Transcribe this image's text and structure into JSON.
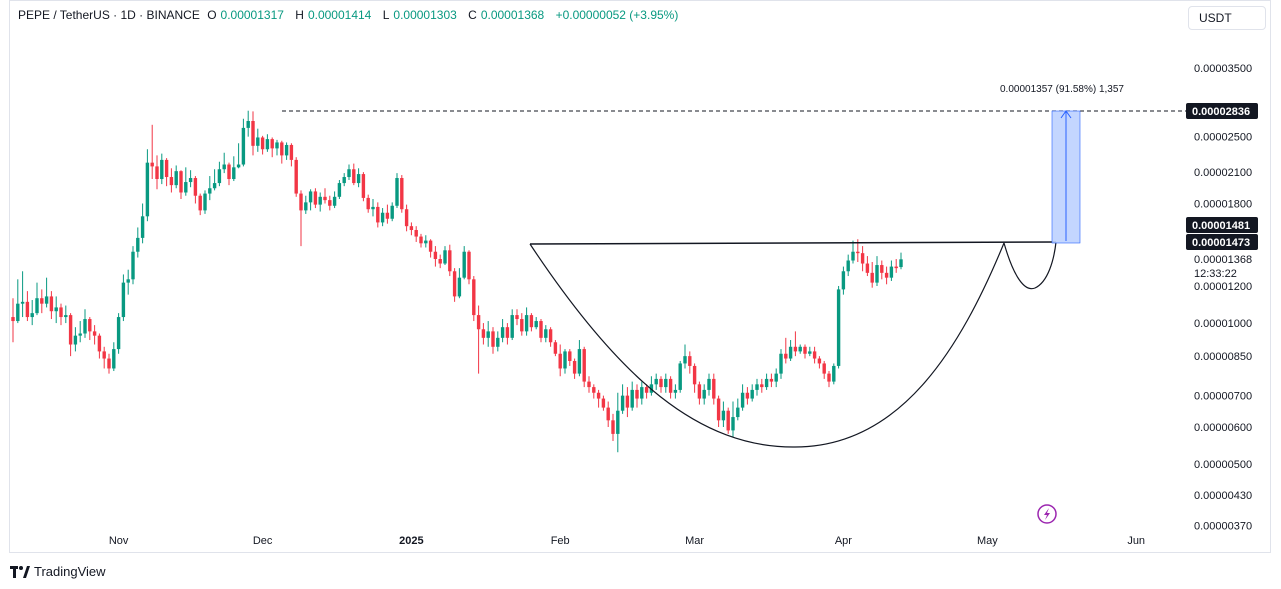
{
  "header": {
    "symbol": "PEPE / TetherUS · 1D · BINANCE",
    "o_label": "O",
    "o_value": "0.00001317",
    "h_label": "H",
    "h_value": "0.00001414",
    "l_label": "L",
    "l_value": "0.00001303",
    "c_label": "C",
    "c_value": "0.00001368",
    "change": "+0.00000052 (+3.95%)"
  },
  "currency_button": "USDT",
  "logo_text": "TradingView",
  "colors": {
    "up": "#089981",
    "down": "#f23645",
    "measure_fill": "#bcd2ff",
    "measure_line": "#2962ff"
  },
  "chart_data": {
    "type": "candlestick",
    "symbol": "PEPE / TetherUS",
    "interval": "1D",
    "exchange": "BINANCE",
    "x_labels": [
      "Nov",
      "Dec",
      "2025",
      "Feb",
      "Mar",
      "Apr",
      "May",
      "Jun"
    ],
    "y_ticks": [
      "0.00003500",
      "0.00002500",
      "0.00002100",
      "0.00001800",
      "0.00001200",
      "0.00001000",
      "0.00000850",
      "0.00000700",
      "0.00000600",
      "0.00000500",
      "0.00000430",
      "0.00000370"
    ],
    "y_scale": "log",
    "price_tags": {
      "target": "0.00002836",
      "high_line": "0.00001481",
      "neckline": "0.00001473"
    },
    "last_price": "0.00001368",
    "countdown": "12:33:22",
    "measure_label": "0.00001357 (91.58%) 1,357",
    "start_date": "2024-10-10",
    "candles": [
      [
        10.3,
        10.1,
        11.3,
        9.1
      ],
      [
        10.1,
        11.0,
        12.4,
        10.0
      ],
      [
        11.0,
        11.1,
        12.9,
        10.3
      ],
      [
        11.1,
        10.3,
        11.7,
        10.1
      ],
      [
        10.3,
        10.5,
        11.2,
        9.9
      ],
      [
        10.5,
        11.3,
        12.2,
        10.4
      ],
      [
        11.3,
        11.0,
        11.8,
        10.5
      ],
      [
        11.0,
        11.4,
        12.5,
        10.8
      ],
      [
        11.4,
        10.6,
        11.7,
        10.2
      ],
      [
        10.6,
        10.8,
        11.4,
        10.0
      ],
      [
        10.8,
        10.3,
        11.0,
        9.9
      ],
      [
        10.3,
        10.4,
        10.9,
        10.0
      ],
      [
        10.4,
        9.0,
        10.5,
        8.5
      ],
      [
        9.0,
        9.4,
        9.8,
        8.7
      ],
      [
        9.4,
        9.5,
        10.1,
        9.1
      ],
      [
        9.5,
        10.2,
        10.7,
        9.3
      ],
      [
        10.2,
        9.6,
        10.3,
        9.2
      ],
      [
        9.6,
        9.4,
        9.9,
        9.0
      ],
      [
        9.4,
        8.7,
        9.5,
        8.4
      ],
      [
        8.7,
        8.4,
        8.9,
        8.0
      ],
      [
        8.4,
        8.0,
        8.6,
        7.8
      ],
      [
        8.0,
        8.8,
        9.1,
        7.9
      ],
      [
        8.8,
        10.3,
        10.5,
        8.6
      ],
      [
        10.3,
        12.2,
        12.7,
        10.1
      ],
      [
        12.2,
        12.4,
        13.0,
        11.5
      ],
      [
        12.4,
        14.2,
        14.6,
        12.1
      ],
      [
        14.2,
        15.2,
        16.0,
        13.8
      ],
      [
        15.2,
        16.9,
        18.0,
        14.8
      ],
      [
        16.9,
        22.0,
        23.5,
        16.5
      ],
      [
        22.0,
        21.6,
        26.5,
        20.3
      ],
      [
        21.6,
        20.3,
        22.8,
        19.3
      ],
      [
        20.3,
        22.3,
        23.0,
        19.8
      ],
      [
        22.3,
        20.5,
        22.5,
        19.6
      ],
      [
        20.5,
        19.7,
        21.4,
        19.0
      ],
      [
        19.7,
        21.1,
        21.7,
        19.4
      ],
      [
        21.1,
        19.0,
        21.2,
        18.4
      ],
      [
        19.0,
        20.0,
        21.5,
        18.7
      ],
      [
        20.0,
        20.4,
        21.2,
        19.5
      ],
      [
        20.4,
        18.7,
        20.6,
        18.0
      ],
      [
        18.7,
        17.4,
        18.9,
        17.0
      ],
      [
        17.4,
        18.9,
        19.2,
        17.1
      ],
      [
        18.9,
        19.4,
        20.6,
        18.3
      ],
      [
        19.4,
        19.9,
        21.3,
        19.2
      ],
      [
        19.9,
        21.3,
        22.1,
        19.6
      ],
      [
        21.3,
        21.8,
        23.1,
        20.9
      ],
      [
        21.8,
        20.3,
        22.0,
        19.7
      ],
      [
        20.3,
        21.5,
        22.7,
        20.1
      ],
      [
        21.5,
        21.8,
        24.2,
        21.4
      ],
      [
        21.8,
        26.1,
        27.3,
        21.6
      ],
      [
        26.1,
        27.0,
        28.4,
        25.0
      ],
      [
        27.0,
        23.9,
        28.3,
        22.8
      ],
      [
        23.9,
        24.9,
        26.0,
        23.2
      ],
      [
        24.9,
        23.5,
        25.1,
        22.9
      ],
      [
        23.5,
        24.7,
        25.3,
        23.2
      ],
      [
        24.7,
        23.6,
        24.9,
        22.6
      ],
      [
        23.6,
        24.3,
        24.6,
        22.8
      ],
      [
        24.3,
        22.8,
        24.5,
        21.9
      ],
      [
        22.8,
        24.0,
        24.3,
        22.3
      ],
      [
        24.0,
        22.3,
        24.2,
        21.6
      ],
      [
        22.3,
        18.9,
        22.6,
        18.6
      ],
      [
        18.9,
        17.4,
        19.2,
        14.6
      ],
      [
        17.4,
        18.1,
        18.7,
        17.1
      ],
      [
        18.1,
        19.1,
        19.3,
        17.4
      ],
      [
        19.1,
        17.9,
        19.4,
        17.6
      ],
      [
        17.9,
        18.6,
        19.0,
        17.3
      ],
      [
        18.6,
        18.3,
        19.4,
        18.0
      ],
      [
        18.3,
        17.8,
        18.7,
        17.4
      ],
      [
        17.8,
        18.6,
        19.1,
        17.6
      ],
      [
        18.6,
        19.9,
        20.2,
        18.4
      ],
      [
        19.9,
        20.5,
        20.9,
        19.6
      ],
      [
        20.5,
        21.3,
        21.8,
        20.2
      ],
      [
        21.3,
        19.9,
        21.9,
        19.7
      ],
      [
        19.9,
        20.8,
        21.4,
        19.5
      ],
      [
        20.8,
        18.5,
        21.0,
        18.2
      ],
      [
        18.5,
        17.5,
        18.8,
        17.2
      ],
      [
        17.5,
        17.7,
        18.4,
        16.9
      ],
      [
        17.7,
        16.4,
        18.1,
        16.0
      ],
      [
        16.4,
        17.2,
        17.6,
        16.1
      ],
      [
        17.2,
        16.7,
        17.9,
        16.3
      ],
      [
        16.7,
        17.8,
        18.1,
        16.5
      ],
      [
        17.8,
        20.4,
        20.9,
        17.6
      ],
      [
        20.4,
        17.5,
        20.7,
        17.2
      ],
      [
        17.5,
        16.1,
        17.9,
        15.7
      ],
      [
        16.1,
        15.8,
        16.4,
        15.4
      ],
      [
        15.8,
        15.3,
        16.1,
        14.9
      ],
      [
        15.3,
        14.8,
        15.5,
        14.5
      ],
      [
        14.8,
        15.0,
        15.4,
        14.5
      ],
      [
        15.0,
        14.2,
        15.1,
        13.8
      ],
      [
        14.2,
        13.7,
        14.6,
        13.2
      ],
      [
        13.7,
        13.4,
        14.0,
        13.1
      ],
      [
        13.4,
        14.3,
        14.6,
        13.3
      ],
      [
        14.3,
        12.9,
        14.7,
        12.6
      ],
      [
        12.9,
        11.4,
        13.1,
        11.1
      ],
      [
        11.4,
        12.5,
        13.1,
        11.3
      ],
      [
        12.5,
        14.2,
        14.6,
        12.4
      ],
      [
        14.2,
        12.4,
        14.3,
        12.1
      ],
      [
        12.4,
        10.4,
        12.6,
        10.1
      ],
      [
        10.4,
        9.7,
        10.9,
        7.8
      ],
      [
        9.7,
        9.3,
        10.0,
        9.0
      ],
      [
        9.3,
        9.6,
        10.1,
        8.9
      ],
      [
        9.6,
        8.9,
        9.8,
        8.6
      ],
      [
        8.9,
        9.3,
        9.6,
        8.7
      ],
      [
        9.3,
        9.8,
        10.2,
        9.1
      ],
      [
        9.8,
        9.3,
        10.0,
        9.0
      ],
      [
        9.3,
        10.4,
        10.7,
        9.2
      ],
      [
        10.4,
        10.2,
        10.7,
        9.9
      ],
      [
        10.2,
        9.6,
        10.5,
        9.4
      ],
      [
        9.6,
        10.4,
        10.8,
        9.4
      ],
      [
        10.4,
        9.8,
        10.5,
        9.6
      ],
      [
        9.8,
        10.1,
        10.3,
        9.7
      ],
      [
        10.1,
        9.3,
        10.2,
        9.1
      ],
      [
        9.3,
        9.7,
        9.9,
        9.1
      ],
      [
        9.7,
        9.1,
        9.8,
        8.9
      ],
      [
        9.1,
        8.6,
        9.2,
        8.5
      ],
      [
        8.6,
        8.0,
        9.0,
        7.7
      ],
      [
        8.0,
        8.7,
        8.8,
        7.8
      ],
      [
        8.7,
        8.3,
        8.8,
        8.1
      ],
      [
        8.3,
        7.8,
        8.4,
        7.6
      ],
      [
        7.8,
        8.8,
        9.2,
        7.7
      ],
      [
        8.8,
        7.5,
        8.9,
        7.3
      ],
      [
        7.5,
        7.3,
        7.7,
        7.1
      ],
      [
        7.3,
        7.1,
        7.4,
        6.9
      ],
      [
        7.1,
        6.9,
        7.2,
        6.6
      ],
      [
        6.9,
        6.6,
        7.0,
        6.5
      ],
      [
        6.6,
        6.2,
        6.8,
        6.0
      ],
      [
        6.2,
        5.8,
        6.4,
        5.6
      ],
      [
        5.8,
        6.5,
        7.1,
        5.3
      ],
      [
        6.5,
        7.0,
        7.4,
        6.4
      ],
      [
        7.0,
        6.6,
        7.3,
        6.3
      ],
      [
        6.6,
        7.2,
        7.5,
        6.5
      ],
      [
        7.2,
        6.9,
        7.4,
        6.6
      ],
      [
        6.9,
        7.3,
        7.5,
        6.7
      ],
      [
        7.3,
        7.1,
        7.4,
        6.9
      ],
      [
        7.1,
        7.4,
        7.7,
        7.0
      ],
      [
        7.4,
        7.6,
        7.8,
        7.2
      ],
      [
        7.6,
        7.3,
        7.7,
        7.1
      ],
      [
        7.3,
        7.6,
        7.8,
        7.1
      ],
      [
        7.6,
        7.1,
        7.7,
        6.9
      ],
      [
        7.1,
        7.2,
        7.4,
        6.9
      ],
      [
        7.2,
        8.2,
        8.3,
        7.1
      ],
      [
        8.2,
        8.5,
        9.0,
        8.0
      ],
      [
        8.5,
        8.1,
        8.7,
        7.8
      ],
      [
        8.1,
        7.4,
        8.2,
        7.1
      ],
      [
        7.4,
        6.9,
        7.5,
        6.7
      ],
      [
        6.9,
        7.2,
        7.4,
        6.7
      ],
      [
        7.2,
        7.6,
        7.8,
        7.0
      ],
      [
        7.6,
        6.9,
        7.8,
        6.7
      ],
      [
        6.9,
        6.2,
        7.0,
        6.0
      ],
      [
        6.2,
        6.5,
        6.8,
        6.0
      ],
      [
        6.5,
        5.9,
        6.6,
        5.8
      ],
      [
        5.9,
        6.3,
        6.8,
        5.7
      ],
      [
        6.3,
        6.6,
        6.9,
        6.2
      ],
      [
        6.6,
        7.1,
        7.4,
        6.5
      ],
      [
        7.1,
        6.9,
        7.3,
        6.7
      ],
      [
        6.9,
        7.2,
        7.4,
        6.8
      ],
      [
        7.2,
        7.4,
        7.6,
        7.0
      ],
      [
        7.4,
        7.3,
        7.6,
        7.1
      ],
      [
        7.3,
        7.6,
        7.8,
        7.2
      ],
      [
        7.6,
        7.5,
        7.8,
        7.3
      ],
      [
        7.5,
        7.8,
        8.0,
        7.3
      ],
      [
        7.8,
        8.6,
        8.8,
        7.6
      ],
      [
        8.6,
        8.4,
        9.3,
        8.2
      ],
      [
        8.4,
        8.9,
        9.2,
        8.3
      ],
      [
        8.9,
        8.7,
        9.6,
        8.5
      ],
      [
        8.7,
        8.9,
        9.0,
        8.6
      ],
      [
        8.9,
        8.6,
        9.0,
        8.4
      ],
      [
        8.6,
        8.7,
        8.9,
        8.5
      ],
      [
        8.7,
        8.4,
        8.9,
        8.2
      ],
      [
        8.4,
        8.2,
        8.5,
        8.0
      ],
      [
        8.2,
        7.8,
        8.3,
        7.6
      ],
      [
        7.8,
        7.5,
        7.9,
        7.3
      ],
      [
        7.5,
        8.1,
        8.2,
        7.4
      ],
      [
        8.1,
        11.8,
        12.0,
        8.0
      ],
      [
        11.8,
        12.9,
        13.2,
        11.5
      ],
      [
        12.9,
        13.6,
        14.0,
        12.6
      ],
      [
        13.6,
        14.2,
        15.0,
        13.4
      ],
      [
        14.2,
        14.1,
        15.1,
        13.5
      ],
      [
        14.1,
        13.4,
        14.6,
        12.9
      ],
      [
        13.4,
        12.8,
        13.9,
        12.6
      ],
      [
        12.8,
        12.2,
        13.5,
        11.9
      ],
      [
        12.2,
        13.3,
        13.9,
        12.0
      ],
      [
        13.3,
        12.8,
        13.6,
        12.4
      ],
      [
        12.8,
        12.5,
        13.2,
        12.1
      ],
      [
        12.5,
        13.2,
        13.6,
        12.3
      ],
      [
        13.2,
        13.1,
        13.7,
        12.8
      ],
      [
        13.17,
        13.68,
        14.14,
        13.03
      ]
    ]
  }
}
